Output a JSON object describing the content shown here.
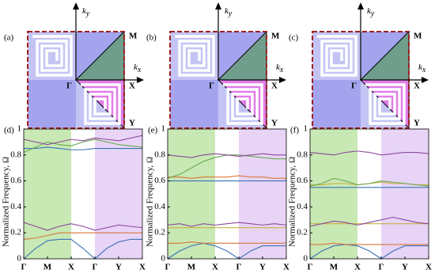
{
  "panels": [
    {
      "label": "(a)",
      "ky": {
        "base": "k",
        "sub": "y"
      },
      "kx": {
        "base": "k",
        "sub": "x"
      },
      "points": [
        "M",
        "X",
        "Y",
        "Γ"
      ]
    },
    {
      "label": "(b)",
      "ky": {
        "base": "k",
        "sub": "y"
      },
      "kx": {
        "base": "k",
        "sub": "x"
      },
      "points": [
        "M",
        "X",
        "Y",
        "Γ"
      ]
    },
    {
      "label": "(c)",
      "ky": {
        "base": "k",
        "sub": "y"
      },
      "kx": {
        "base": "k",
        "sub": "x"
      },
      "points": [
        "M",
        "X",
        "Y",
        "Γ"
      ]
    }
  ],
  "chart_data": [
    {
      "type": "line",
      "label": "(d)",
      "ylabel": "Normalized Frequency, Ω",
      "x": [
        0,
        0.5,
        1,
        1.5,
        2,
        2.5,
        3,
        3.5,
        4,
        4.5,
        5
      ],
      "xlim": [
        0,
        5
      ],
      "ylim": [
        0,
        1
      ],
      "yticks": [
        0,
        0.2,
        0.4,
        0.6,
        0.8,
        1
      ],
      "xticks": [
        {
          "value": 0,
          "label": "Γ"
        },
        {
          "value": 1,
          "label": "M"
        },
        {
          "value": 2,
          "label": "X"
        },
        {
          "value": 3,
          "label": "Γ"
        },
        {
          "value": 4,
          "label": "Y"
        },
        {
          "value": 5,
          "label": "X"
        }
      ],
      "regions": [
        {
          "from": 0,
          "to": 2,
          "color": "#c8e8b4"
        },
        {
          "from": 3,
          "to": 5,
          "color": "#e8d4f6"
        }
      ],
      "series": [
        {
          "color": "#3a72b8",
          "values": [
            0,
            0.08,
            0.14,
            0.15,
            0.15,
            0.08,
            0,
            0.08,
            0.13,
            0.15,
            0.15
          ]
        },
        {
          "color": "#d9773a",
          "values": [
            0.15,
            0.16,
            0.18,
            0.2,
            0.2,
            0.2,
            0.2,
            0.2,
            0.2,
            0.2,
            0.2
          ]
        },
        {
          "color": "#8a4a9a",
          "values": [
            0.28,
            0.25,
            0.22,
            0.25,
            0.27,
            0.25,
            0.22,
            0.24,
            0.26,
            0.25,
            0.24
          ]
        },
        {
          "color": "#3a72b8",
          "values": [
            0.85,
            0.85,
            0.86,
            0.85,
            0.84,
            0.84,
            0.85,
            0.85,
            0.85,
            0.85,
            0.85
          ]
        },
        {
          "color": "#6aa84f",
          "values": [
            0.82,
            0.86,
            0.9,
            0.88,
            0.87,
            0.9,
            0.92,
            0.9,
            0.88,
            0.87,
            0.86
          ]
        },
        {
          "color": "#8a4a9a",
          "values": [
            0.92,
            0.9,
            0.88,
            0.9,
            0.92,
            0.91,
            0.93,
            0.92,
            0.91,
            0.93,
            0.95
          ]
        }
      ]
    },
    {
      "type": "line",
      "label": "(e)",
      "ylabel": "Normalized Frequency, Ω",
      "x": [
        0,
        0.5,
        1,
        1.5,
        2,
        2.5,
        3,
        3.5,
        4,
        4.5,
        5
      ],
      "xlim": [
        0,
        5
      ],
      "ylim": [
        0,
        1
      ],
      "yticks": [
        0,
        0.2,
        0.4,
        0.6,
        0.8,
        1
      ],
      "xticks": [
        {
          "value": 0,
          "label": "Γ"
        },
        {
          "value": 1,
          "label": "M"
        },
        {
          "value": 2,
          "label": "X"
        },
        {
          "value": 3,
          "label": "Γ"
        },
        {
          "value": 4,
          "label": "Y"
        },
        {
          "value": 5,
          "label": "X"
        }
      ],
      "regions": [
        {
          "from": 0,
          "to": 2,
          "color": "#c8e8b4"
        },
        {
          "from": 3,
          "to": 5,
          "color": "#e8d4f6"
        }
      ],
      "series": [
        {
          "color": "#3a72b8",
          "values": [
            0,
            0.06,
            0.1,
            0.12,
            0.1,
            0.06,
            0,
            0.06,
            0.1,
            0.1,
            0.1
          ]
        },
        {
          "color": "#d9773a",
          "values": [
            0.12,
            0.12,
            0.13,
            0.12,
            0.12,
            0.12,
            0.12,
            0.12,
            0.12,
            0.12,
            0.12
          ]
        },
        {
          "color": "#c8b040",
          "values": [
            0.24,
            0.24,
            0.24,
            0.24,
            0.24,
            0.24,
            0.24,
            0.24,
            0.24,
            0.24,
            0.24
          ]
        },
        {
          "color": "#8a4a9a",
          "values": [
            0.26,
            0.27,
            0.25,
            0.27,
            0.26,
            0.27,
            0.28,
            0.27,
            0.26,
            0.27,
            0.26
          ]
        },
        {
          "color": "#3a72b8",
          "values": [
            0.6,
            0.6,
            0.6,
            0.6,
            0.6,
            0.6,
            0.6,
            0.6,
            0.6,
            0.6,
            0.6
          ]
        },
        {
          "color": "#d9773a",
          "values": [
            0.63,
            0.63,
            0.62,
            0.63,
            0.63,
            0.63,
            0.64,
            0.63,
            0.63,
            0.62,
            0.62
          ]
        },
        {
          "color": "#6aa84f",
          "values": [
            0.62,
            0.65,
            0.7,
            0.75,
            0.78,
            0.8,
            0.8,
            0.79,
            0.78,
            0.77,
            0.77
          ]
        },
        {
          "color": "#8a4a9a",
          "values": [
            0.8,
            0.79,
            0.78,
            0.8,
            0.81,
            0.8,
            0.79,
            0.8,
            0.81,
            0.8,
            0.8
          ]
        }
      ]
    },
    {
      "type": "line",
      "label": "(f)",
      "ylabel": "Normalized Frequency, Ω",
      "x": [
        0,
        0.5,
        1,
        1.5,
        2,
        2.5,
        3,
        3.5,
        4,
        4.5,
        5
      ],
      "xlim": [
        0,
        5
      ],
      "ylim": [
        0,
        1
      ],
      "yticks": [
        0,
        0.2,
        0.4,
        0.6,
        0.8,
        1
      ],
      "xticks": [
        {
          "value": 0,
          "label": "Γ"
        },
        {
          "value": 1,
          "label": "M"
        },
        {
          "value": 2,
          "label": "X"
        },
        {
          "value": 3,
          "label": "Γ"
        },
        {
          "value": 4,
          "label": "Y"
        },
        {
          "value": 5,
          "label": "X"
        }
      ],
      "regions": [
        {
          "from": 0,
          "to": 2,
          "color": "#c8e8b4"
        },
        {
          "from": 3,
          "to": 5,
          "color": "#e8d4f6"
        }
      ],
      "series": [
        {
          "color": "#3a72b8",
          "values": [
            0,
            0.06,
            0.1,
            0.11,
            0.1,
            0.06,
            0,
            0.06,
            0.1,
            0.1,
            0.1
          ]
        },
        {
          "color": "#d9773a",
          "values": [
            0.11,
            0.11,
            0.12,
            0.11,
            0.11,
            0.11,
            0.11,
            0.11,
            0.11,
            0.11,
            0.11
          ]
        },
        {
          "color": "#c8b040",
          "values": [
            0.27,
            0.27,
            0.27,
            0.27,
            0.27,
            0.27,
            0.27,
            0.27,
            0.27,
            0.27,
            0.27
          ]
        },
        {
          "color": "#8a4a9a",
          "values": [
            0.25,
            0.27,
            0.29,
            0.28,
            0.26,
            0.28,
            0.3,
            0.32,
            0.3,
            0.28,
            0.27
          ]
        },
        {
          "color": "#3a72b8",
          "values": [
            0.55,
            0.55,
            0.55,
            0.55,
            0.55,
            0.55,
            0.55,
            0.55,
            0.55,
            0.55,
            0.55
          ]
        },
        {
          "color": "#c8b040",
          "values": [
            0.57,
            0.57,
            0.58,
            0.58,
            0.57,
            0.58,
            0.59,
            0.58,
            0.58,
            0.57,
            0.57
          ]
        },
        {
          "color": "#6aa84f",
          "values": [
            0.56,
            0.58,
            0.62,
            0.6,
            0.57,
            0.58,
            0.6,
            0.59,
            0.58,
            0.57,
            0.56
          ]
        },
        {
          "color": "#8a4a9a",
          "values": [
            0.82,
            0.81,
            0.8,
            0.82,
            0.83,
            0.82,
            0.8,
            0.81,
            0.82,
            0.82,
            0.81
          ]
        }
      ]
    }
  ]
}
